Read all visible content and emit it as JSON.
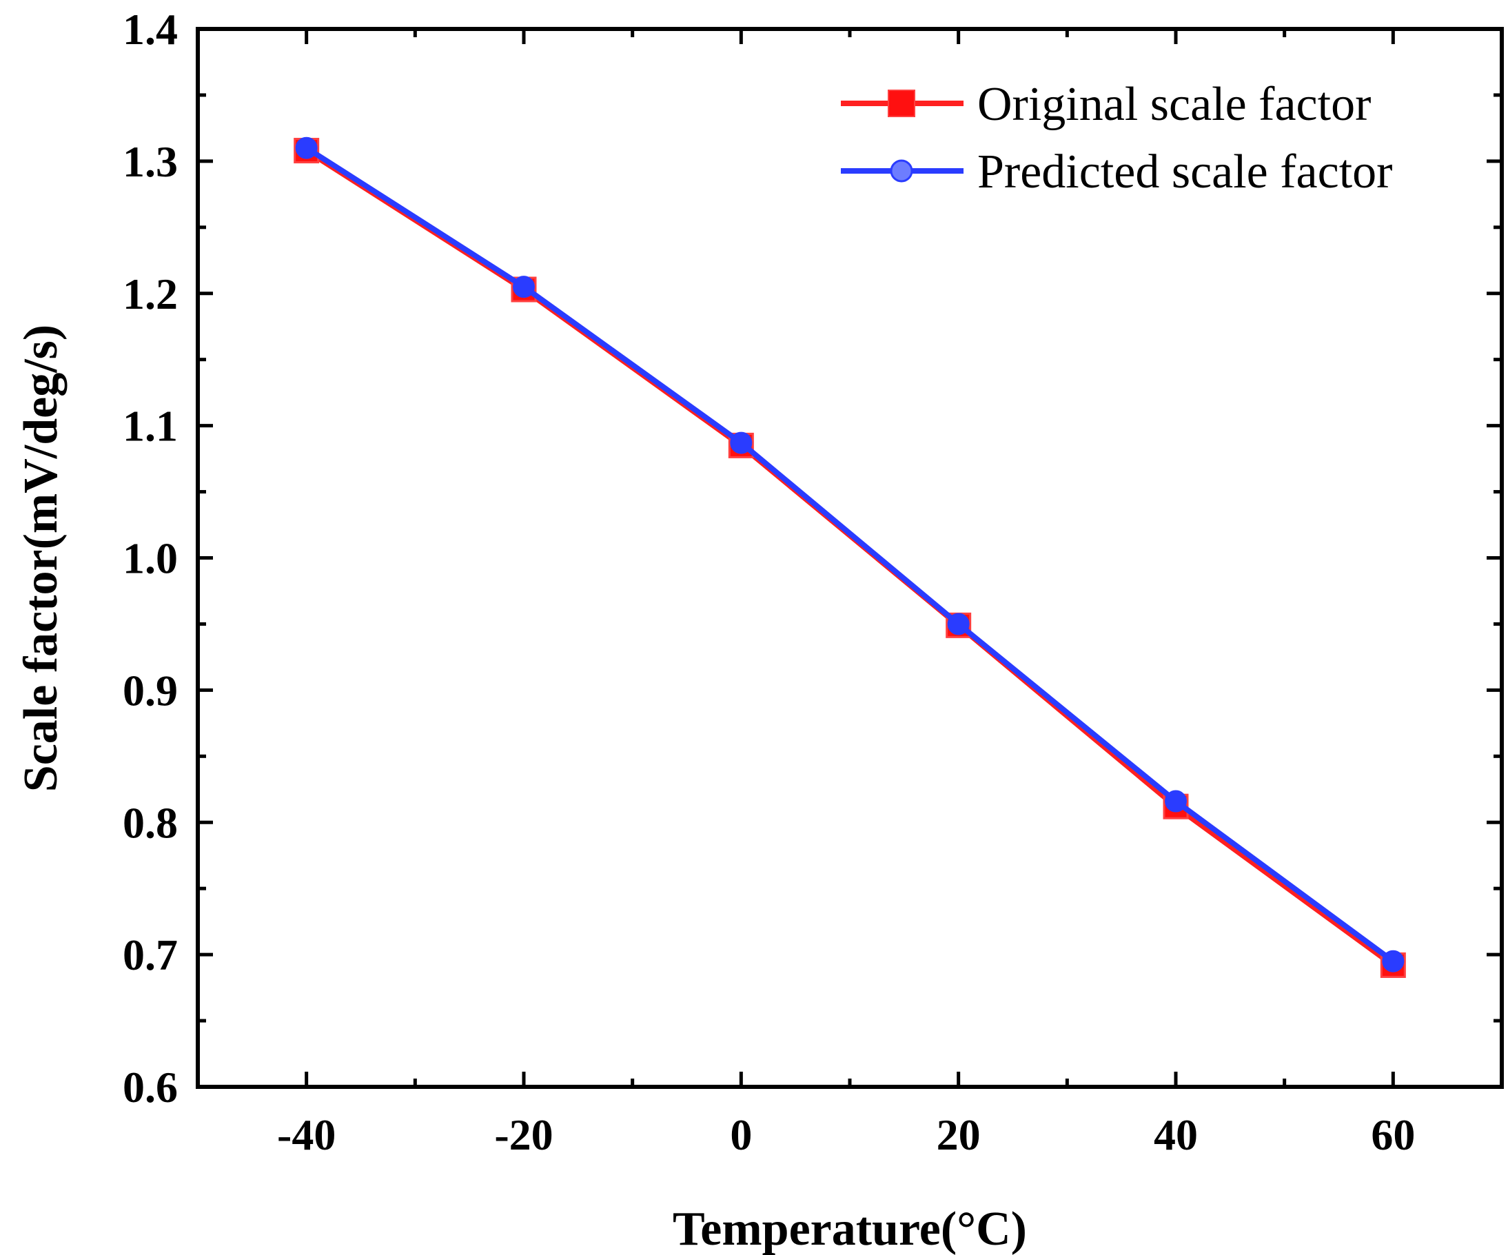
{
  "chart_data": {
    "type": "line",
    "xlabel": "Temperature(°C)",
    "ylabel": "Scale factor(mV/deg/s)",
    "x": [
      -40,
      -20,
      0,
      20,
      40,
      60
    ],
    "xlim": [
      -50,
      70
    ],
    "ylim": [
      0.6,
      1.4
    ],
    "xticks": [
      -40,
      -20,
      0,
      20,
      40,
      60
    ],
    "xtick_labels": [
      "-40",
      "-20",
      "0",
      "20",
      "40",
      "60"
    ],
    "yticks": [
      0.6,
      0.7,
      0.8,
      0.9,
      1.0,
      1.1,
      1.2,
      1.3,
      1.4
    ],
    "ytick_labels": [
      "0.6",
      "0.7",
      "0.8",
      "0.9",
      "1.0",
      "1.1",
      "1.2",
      "1.3",
      "1.4"
    ],
    "grid": false,
    "legend_position": "top-right",
    "series": [
      {
        "name": "Original scale factor",
        "color": "#ff2020",
        "marker": "square",
        "values": [
          1.308,
          1.203,
          1.085,
          0.949,
          0.812,
          0.692
        ]
      },
      {
        "name": "Predicted scale factor",
        "color": "#2a3cff",
        "marker": "circle",
        "values": [
          1.31,
          1.205,
          1.087,
          0.95,
          0.816,
          0.695
        ]
      }
    ]
  }
}
